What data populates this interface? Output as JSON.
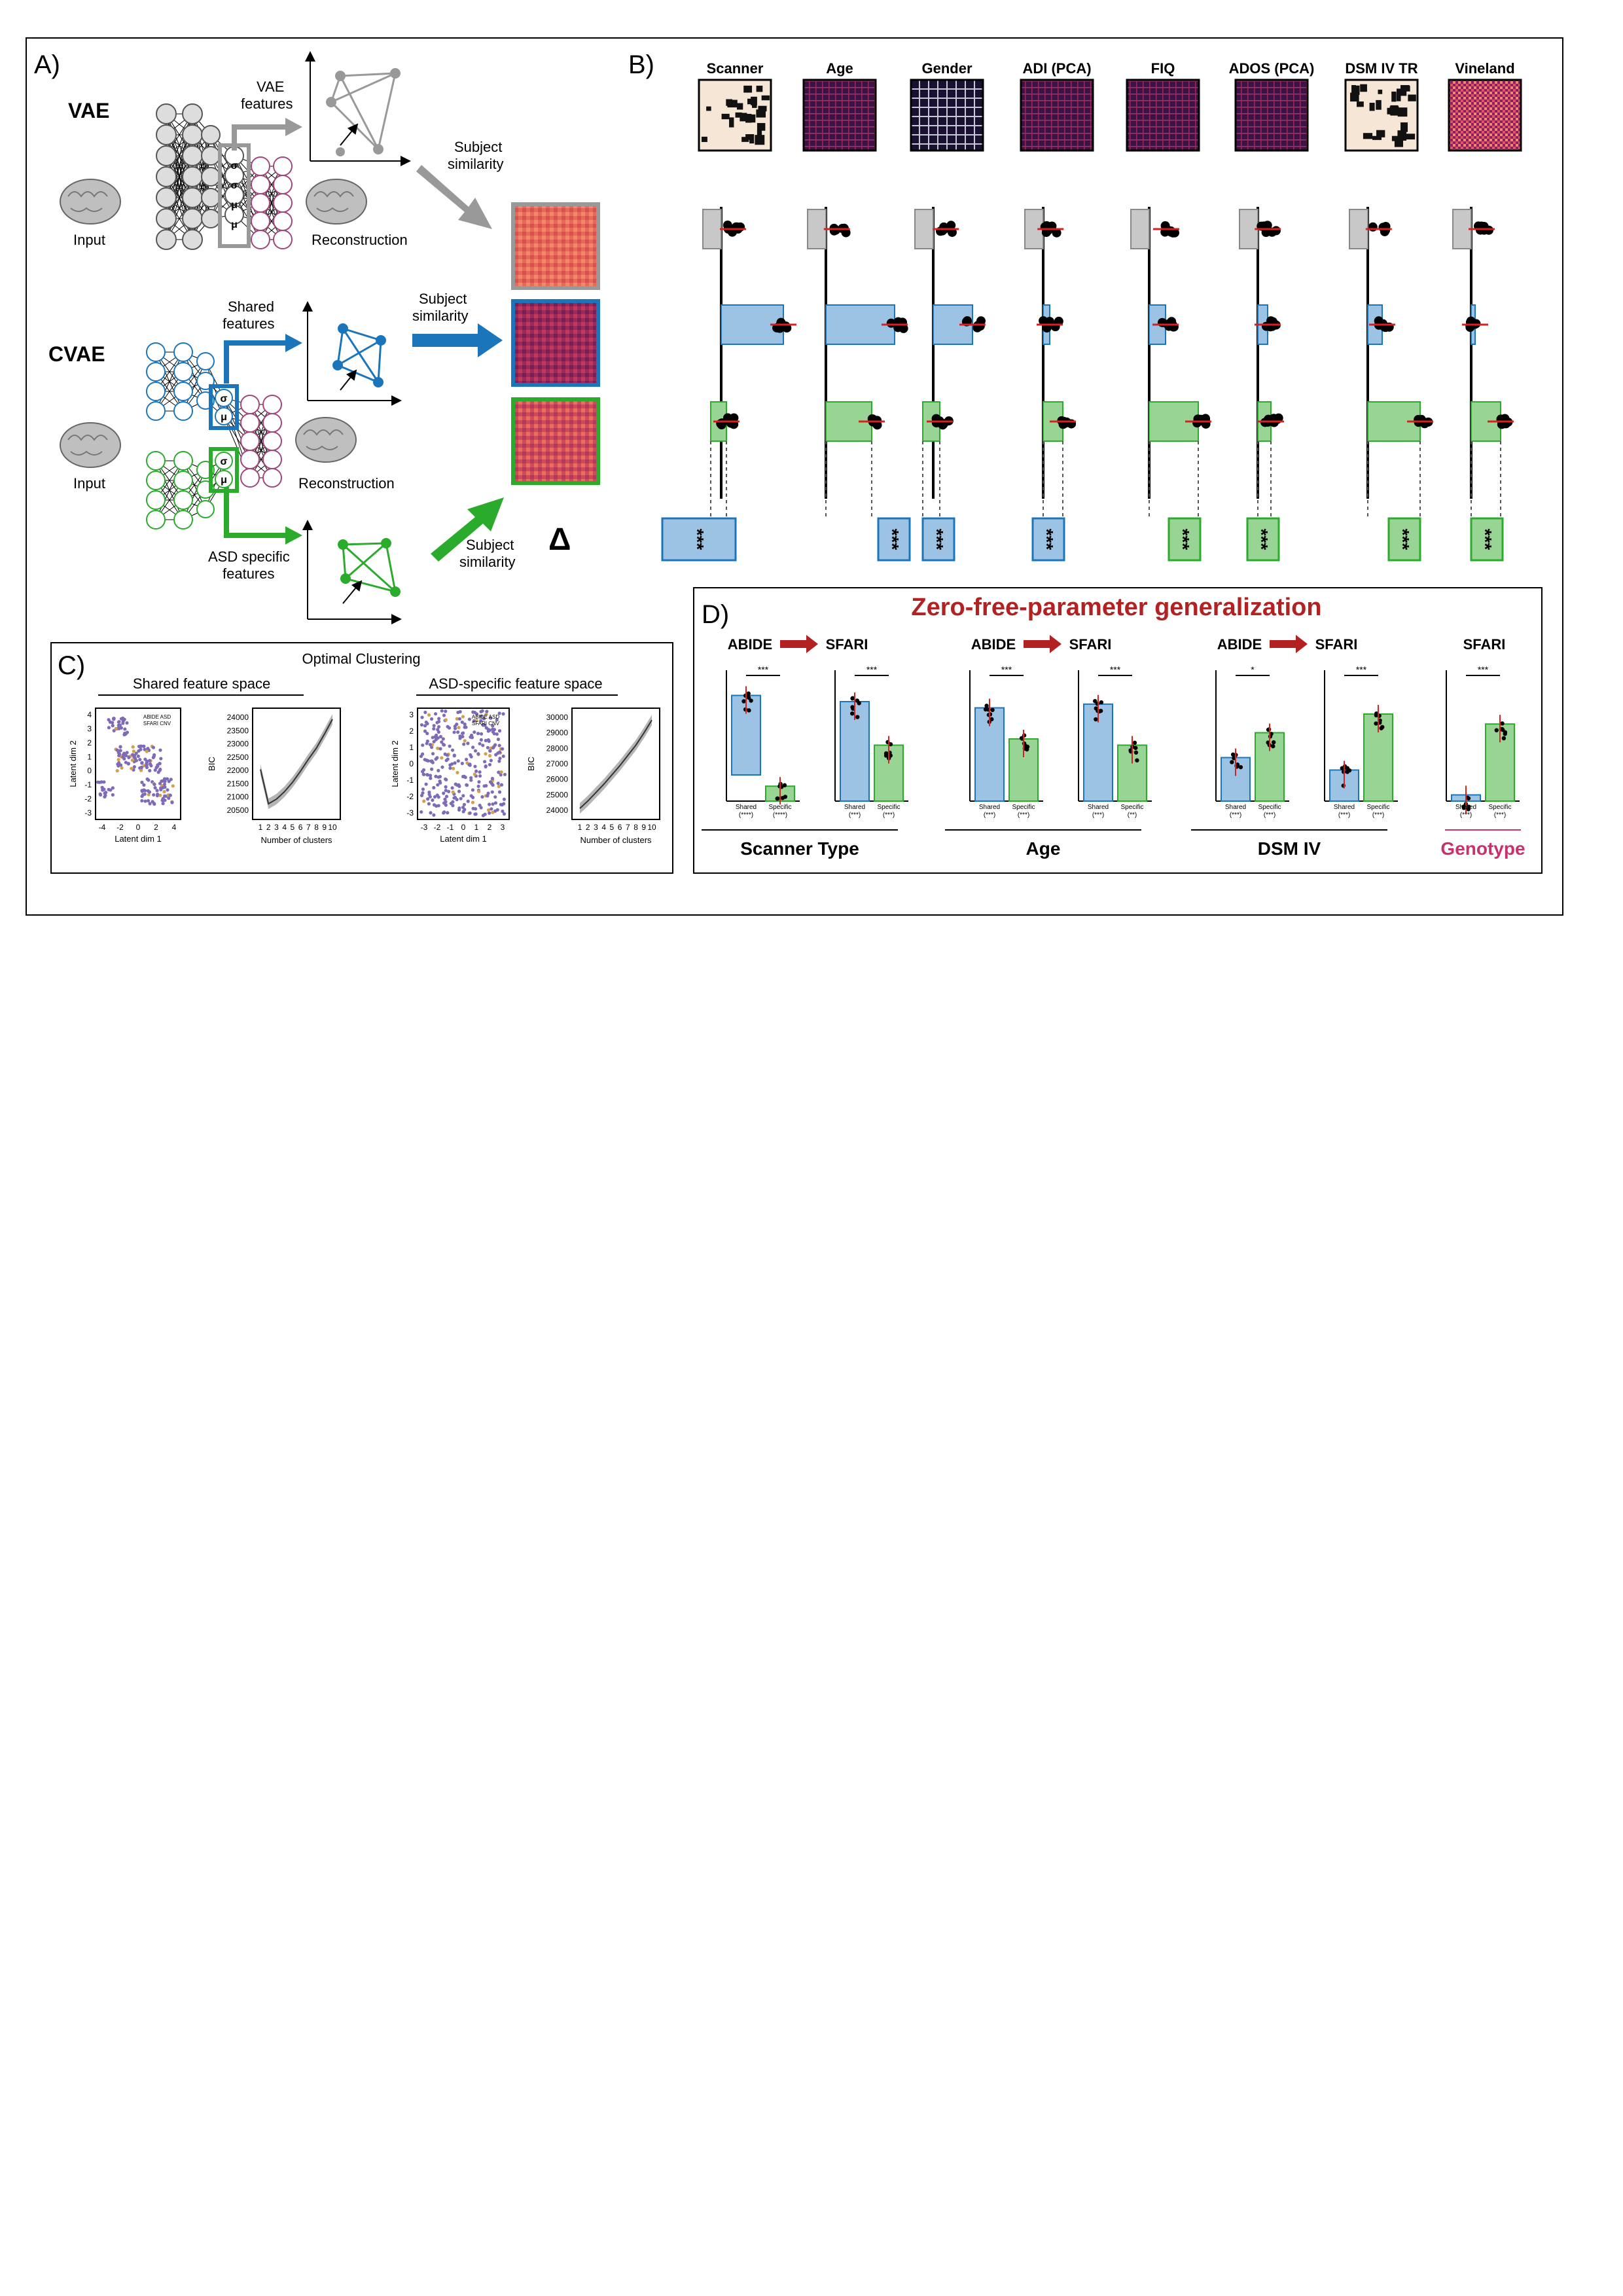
{
  "panel_a": {
    "label": "A)",
    "vae_title": "VAE",
    "cvae_title": "CVAE",
    "input_label": "Input",
    "recon_label": "Reconstruction",
    "vae_features_l1": "VAE",
    "vae_features_l2": "features",
    "shared_features_l1": "Shared",
    "shared_features_l2": "features",
    "asd_features_l1": "ASD specific",
    "asd_features_l2": "features",
    "subject_l1": "Subject",
    "subject_l2": "similarity",
    "delta": "Δ",
    "sigma": "σ",
    "mu": "μ"
  },
  "panel_b": {
    "label": "B)",
    "columns": [
      {
        "name": "Scanner",
        "rdm": "binary",
        "sig_row": "shared"
      },
      {
        "name": "Age",
        "rdm": "dark",
        "sig_row": "shared"
      },
      {
        "name": "Gender",
        "rdm": "stripes",
        "sig_row": "shared"
      },
      {
        "name": "ADI (PCA)",
        "rdm": "dark",
        "sig_row": "shared"
      },
      {
        "name": "FIQ",
        "rdm": "dark",
        "sig_row": "specific"
      },
      {
        "name": "ADOS (PCA)",
        "rdm": "dark",
        "sig_row": "specific"
      },
      {
        "name": "DSM IV TR",
        "rdm": "binary",
        "sig_row": "specific"
      },
      {
        "name": "Vineland",
        "rdm": "bright",
        "sig_row": "specific"
      }
    ],
    "sig_text": "***"
  },
  "panel_c": {
    "label": "C)",
    "title": "Optimal Clustering",
    "shared_title": "Shared feature space",
    "specific_title": "ASD-specific feature space",
    "scatter_x_label": "Latent dim 1",
    "scatter_y_label": "Latent dim 2",
    "legend_1": "ABIDE ASD",
    "legend_2": "SFARI CNV",
    "bic_label": "BIC",
    "clusters_label": "Number of clusters",
    "shared_x_ticks": [
      "-4",
      "-2",
      "0",
      "2",
      "4"
    ],
    "shared_y_ticks": [
      "4",
      "3",
      "2",
      "1",
      "0",
      "-1",
      "-2",
      "-3"
    ],
    "specific_x_ticks": [
      "-3",
      "-2",
      "-1",
      "0",
      "1",
      "2",
      "3"
    ],
    "specific_y_ticks": [
      "3",
      "2",
      "1",
      "0",
      "-1",
      "-2",
      "-3"
    ],
    "bic_x_ticks": [
      "1",
      "2",
      "3",
      "4",
      "5",
      "6",
      "7",
      "8",
      "9",
      "10"
    ],
    "shared_bic_ticks": [
      "24000",
      "23500",
      "23000",
      "22500",
      "22000",
      "21500",
      "21000",
      "20500"
    ],
    "specific_bic_ticks": [
      "30000",
      "29000",
      "28000",
      "27000",
      "26000",
      "25000",
      "24000"
    ]
  },
  "panel_d": {
    "label": "D)",
    "title": "Zero-free-parameter generalization",
    "abide": "ABIDE",
    "sfari": "SFARI",
    "shared": "Shared",
    "specific": "Specific",
    "groups": [
      {
        "name": "Scanner Type",
        "pairs": [
          {
            "shared": 0.85,
            "specific": 0.12,
            "sig": "***",
            "sh_sig": "(****)",
            "sp_sig": "(****)"
          },
          {
            "shared": 0.8,
            "specific": 0.45,
            "sig": "***",
            "sh_sig": "(***)",
            "sp_sig": "(***)"
          }
        ]
      },
      {
        "name": "Age",
        "pairs": [
          {
            "shared": 0.75,
            "specific": 0.5,
            "sig": "***",
            "sh_sig": "(***)",
            "sp_sig": "(***)"
          },
          {
            "shared": 0.78,
            "specific": 0.45,
            "sig": "***",
            "sh_sig": "(***)",
            "sp_sig": "(**)"
          }
        ]
      },
      {
        "name": "DSM IV",
        "pairs": [
          {
            "shared": 0.35,
            "specific": 0.55,
            "sig": "*",
            "sh_sig": "(***)",
            "sp_sig": "(***)"
          },
          {
            "shared": 0.25,
            "specific": 0.7,
            "sig": "***",
            "sh_sig": "(***)",
            "sp_sig": "(***)"
          }
        ]
      },
      {
        "name": "Genotype",
        "pairs": [
          {
            "shared": 0.05,
            "specific": 0.62,
            "sig": "***",
            "sh_sig": "(***)",
            "sp_sig": "(***)"
          }
        ]
      }
    ],
    "colors": {
      "shared": "#9cc3e4",
      "specific": "#98d494",
      "title": "#b22222",
      "genotype": "#c8306e"
    }
  }
}
